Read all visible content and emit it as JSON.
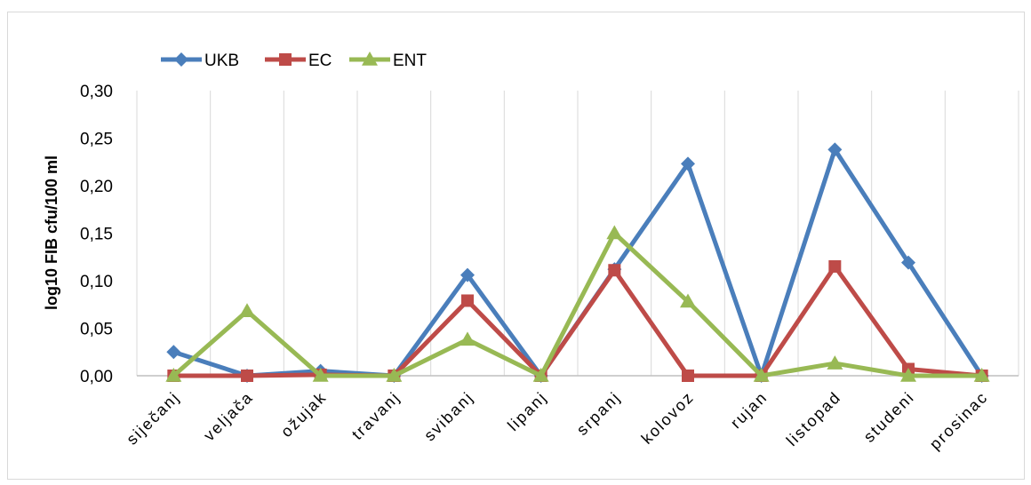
{
  "chart_data": {
    "type": "line",
    "title": "",
    "xlabel": "",
    "ylabel": "log10 FIB cfu/100 ml",
    "ylim": [
      0,
      0.3
    ],
    "yticks": [
      "0,00",
      "0,05",
      "0,10",
      "0,15",
      "0,20",
      "0,25",
      "0,30"
    ],
    "grid": "vertical",
    "legend": "top-left",
    "categories": [
      "siječanj",
      "veljača",
      "ožujak",
      "travanj",
      "svibanj",
      "lipanj",
      "srpanj",
      "kolovoz",
      "rujan",
      "listopad",
      "studeni",
      "prosinac"
    ],
    "series": [
      {
        "name": "UKB",
        "color": "#4a7ebb",
        "marker": "diamond",
        "values": [
          0.025,
          0.0,
          0.005,
          0.0,
          0.106,
          0.0,
          0.112,
          0.223,
          0.0,
          0.238,
          0.119,
          0.0
        ]
      },
      {
        "name": "EC",
        "color": "#be4b48",
        "marker": "square",
        "values": [
          0.0,
          0.0,
          0.001,
          0.0,
          0.079,
          0.0,
          0.111,
          0.0,
          0.0,
          0.115,
          0.007,
          0.0
        ]
      },
      {
        "name": "ENT",
        "color": "#98b954",
        "marker": "triangle",
        "values": [
          0.0,
          0.068,
          0.0,
          0.0,
          0.038,
          0.0,
          0.15,
          0.078,
          0.0,
          0.013,
          0.0,
          0.0
        ]
      }
    ]
  }
}
